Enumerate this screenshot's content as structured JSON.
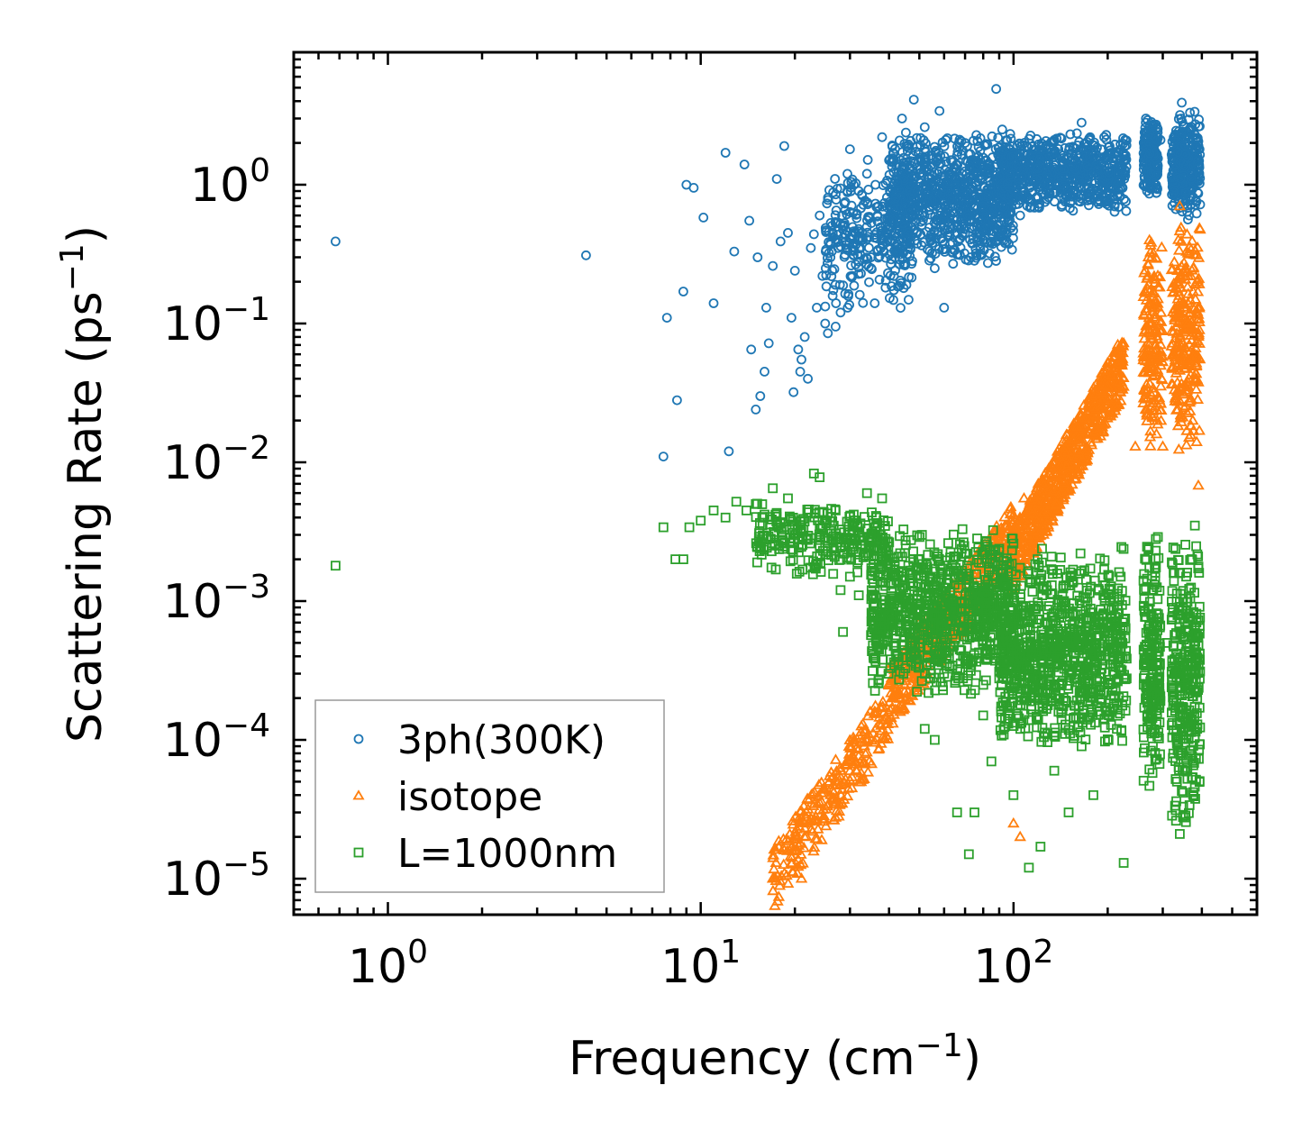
{
  "chart_data": {
    "type": "scatter",
    "xscale": "log",
    "yscale": "log",
    "xlim": [
      0.5,
      600
    ],
    "ylim": [
      5.5e-06,
      9
    ],
    "xlabel": "Frequency (cm",
    "xlabel_sup": "−1",
    "xlabel_end": ")",
    "ylabel": "Scattering Rate (ps",
    "ylabel_sup": "−1",
    "ylabel_end": ")",
    "x_ticks": [
      {
        "value": 1,
        "base": "10",
        "exp": "0"
      },
      {
        "value": 10,
        "base": "10",
        "exp": "1"
      },
      {
        "value": 100,
        "base": "10",
        "exp": "2"
      }
    ],
    "y_ticks": [
      {
        "value": 1,
        "base": "10",
        "exp": "0"
      },
      {
        "value": 0.1,
        "base": "10",
        "exp": "−1"
      },
      {
        "value": 0.01,
        "base": "10",
        "exp": "−2"
      },
      {
        "value": 0.001,
        "base": "10",
        "exp": "−3"
      },
      {
        "value": 0.0001,
        "base": "10",
        "exp": "−4"
      },
      {
        "value": 1e-05,
        "base": "10",
        "exp": "−5"
      }
    ],
    "legend_position": "lower-left",
    "series": [
      {
        "name": "3ph(300K)",
        "marker": "circle",
        "color": "#1f77b4",
        "points": [
          [
            0.68,
            0.39
          ],
          [
            4.3,
            0.31
          ],
          [
            7.6,
            0.011
          ],
          [
            7.8,
            0.11
          ],
          [
            8.4,
            0.028
          ],
          [
            8.8,
            0.17
          ],
          [
            9.0,
            1.0
          ],
          [
            9.5,
            0.95
          ],
          [
            10.2,
            0.58
          ],
          [
            11.0,
            0.14
          ],
          [
            12.0,
            1.7
          ],
          [
            12.3,
            0.012
          ],
          [
            12.8,
            0.33
          ],
          [
            13.8,
            1.4
          ],
          [
            14.3,
            0.55
          ],
          [
            14.5,
            0.065
          ],
          [
            15.0,
            0.024
          ],
          [
            15.2,
            0.3
          ],
          [
            15.5,
            0.03
          ],
          [
            16.0,
            0.045
          ],
          [
            16.2,
            0.13
          ],
          [
            16.5,
            0.072
          ],
          [
            17.0,
            0.26
          ],
          [
            17.5,
            1.1
          ],
          [
            18.0,
            0.39
          ],
          [
            18.5,
            1.9
          ],
          [
            19.0,
            0.45
          ],
          [
            19.5,
            0.11
          ],
          [
            19.8,
            0.032
          ],
          [
            20.0,
            0.24
          ],
          [
            20.5,
            0.065
          ],
          [
            20.8,
            0.045
          ],
          [
            21.0,
            0.055
          ],
          [
            21.5,
            0.08
          ],
          [
            22.0,
            0.04
          ],
          [
            22.5,
            0.35
          ],
          [
            23.0,
            0.44
          ],
          [
            23.5,
            0.13
          ],
          [
            24.0,
            0.6
          ],
          [
            24.5,
            0.22
          ],
          [
            25.0,
            0.1
          ],
          [
            25.5,
            0.085
          ],
          [
            26.0,
            0.3
          ],
          [
            26.5,
            0.88
          ],
          [
            27.0,
            0.095
          ],
          [
            27.5,
            0.35
          ],
          [
            28.0,
            0.12
          ],
          [
            28.5,
            0.5
          ],
          [
            29.0,
            0.75
          ],
          [
            29.5,
            0.13
          ],
          [
            30.0,
            1.8
          ],
          [
            30.5,
            0.22
          ],
          [
            31.0,
            0.45
          ],
          [
            32.0,
            0.9
          ],
          [
            33.0,
            0.4
          ],
          [
            34.0,
            1.2
          ],
          [
            35.0,
            0.3
          ],
          [
            36.0,
            0.14
          ],
          [
            37.0,
            0.7
          ],
          [
            38.0,
            2.2
          ],
          [
            39.0,
            0.5
          ],
          [
            40.0,
            1.5
          ],
          [
            42.0,
            0.8
          ],
          [
            44.0,
            3.0
          ],
          [
            46.0,
            0.35
          ],
          [
            48.0,
            4.1
          ],
          [
            50.0,
            0.6
          ],
          [
            52.0,
            2.6
          ],
          [
            54.0,
            1.0
          ],
          [
            56.0,
            0.25
          ],
          [
            58.0,
            3.4
          ],
          [
            60.0,
            0.13
          ],
          [
            63.0,
            1.5
          ],
          [
            66.0,
            0.45
          ],
          [
            70.0,
            2.0
          ],
          [
            73.0,
            0.3
          ],
          [
            76.0,
            1.2
          ],
          [
            80.0,
            0.7
          ],
          [
            85.0,
            0.5
          ],
          [
            88.0,
            4.9
          ],
          [
            92.0,
            2.5
          ],
          [
            96.0,
            0.85
          ],
          [
            100.0,
            1.6
          ],
          [
            105.0,
            0.6
          ],
          [
            110.0,
            1.9
          ],
          [
            118.0,
            1.1
          ],
          [
            126.0,
            0.75
          ],
          [
            135.0,
            2.1
          ],
          [
            145.0,
            1.3
          ],
          [
            155.0,
            0.65
          ],
          [
            165.0,
            2.8
          ],
          [
            175.0,
            1.6
          ],
          [
            185.0,
            0.9
          ],
          [
            195.0,
            2.2
          ],
          [
            205.0,
            1.7
          ],
          [
            215.0,
            1.0
          ],
          [
            225.0,
            1.5
          ],
          [
            265.0,
            3.0
          ],
          [
            275.0,
            1.2
          ],
          [
            285.0,
            0.95
          ],
          [
            295.0,
            2.1
          ],
          [
            330.0,
            1.4
          ],
          [
            345.0,
            3.9
          ],
          [
            355.0,
            0.8
          ],
          [
            370.0,
            1.1
          ],
          [
            385.0,
            0.62
          ],
          [
            395.0,
            0.72
          ]
        ],
        "clusters": [
          {
            "x": [
              25,
              48
            ],
            "y": [
              0.12,
              1.6
            ],
            "n": 300
          },
          {
            "x": [
              40,
              100
            ],
            "y": [
              0.25,
              2.5
            ],
            "n": 900
          },
          {
            "x": [
              90,
              230
            ],
            "y": [
              0.6,
              2.5
            ],
            "n": 700
          },
          {
            "x": [
              260,
              290
            ],
            "y": [
              0.8,
              3.0
            ],
            "n": 180
          },
          {
            "x": [
              320,
              395
            ],
            "y": [
              0.55,
              3.5
            ],
            "n": 300
          }
        ]
      },
      {
        "name": "isotope",
        "marker": "triangle",
        "color": "#ff7f0e",
        "points": [
          [
            17.0,
            1e-05
          ],
          [
            18.5,
            1.6e-05
          ],
          [
            19.5,
            1.3e-05
          ],
          [
            21.0,
            1e-05
          ],
          [
            22.0,
            2.5e-05
          ],
          [
            24.0,
            3.5e-05
          ],
          [
            26.0,
            4e-05
          ],
          [
            28.0,
            6e-05
          ],
          [
            30.0,
            9e-05
          ],
          [
            33.0,
            0.00013
          ],
          [
            36.0,
            0.00016
          ],
          [
            40.0,
            0.00025
          ],
          [
            45.0,
            0.0004
          ],
          [
            50.0,
            0.0007
          ],
          [
            57.0,
            0.0009
          ],
          [
            65.0,
            0.0013
          ],
          [
            75.0,
            0.0019
          ],
          [
            85.0,
            0.0027
          ],
          [
            95.0,
            0.0035
          ],
          [
            108.0,
            0.0055
          ],
          [
            120.0,
            0.007
          ],
          [
            140.0,
            0.011
          ],
          [
            160.0,
            0.018
          ],
          [
            180.0,
            0.025
          ],
          [
            200.0,
            0.035
          ],
          [
            215.0,
            0.05
          ],
          [
            245.0,
            0.013
          ],
          [
            270.0,
            0.3
          ],
          [
            280.0,
            0.06
          ],
          [
            300.0,
            0.013
          ],
          [
            340.0,
            0.7
          ],
          [
            355.0,
            0.25
          ],
          [
            370.0,
            0.05
          ],
          [
            385.0,
            0.014
          ],
          [
            390.0,
            0.0068
          ],
          [
            100.0,
            2.5e-05
          ],
          [
            105.0,
            2e-05
          ]
        ],
        "clusters": [
          {
            "x": [
              17,
              40
            ],
            "y": [
              1e-05,
              0.00015
            ],
            "n": 260,
            "trend": "rising"
          },
          {
            "x": [
              40,
              100
            ],
            "y": [
              0.0002,
              0.003
            ],
            "n": 420,
            "trend": "rising"
          },
          {
            "x": [
              100,
              225
            ],
            "y": [
              0.002,
              0.05
            ],
            "n": 700,
            "trend": "rising"
          },
          {
            "x": [
              260,
              300
            ],
            "y": [
              0.01,
              0.5
            ],
            "n": 180
          },
          {
            "x": [
              320,
              395
            ],
            "y": [
              0.01,
              0.7
            ],
            "n": 260
          }
        ]
      },
      {
        "name": "L=1000nm",
        "marker": "square",
        "color": "#2ca02c",
        "points": [
          [
            0.68,
            0.0018
          ],
          [
            7.6,
            0.0034
          ],
          [
            8.3,
            0.002
          ],
          [
            8.8,
            0.002
          ],
          [
            9.2,
            0.0034
          ],
          [
            10.0,
            0.0038
          ],
          [
            11.0,
            0.0045
          ],
          [
            12.0,
            0.004
          ],
          [
            13.0,
            0.0052
          ],
          [
            14.0,
            0.0045
          ],
          [
            15.0,
            0.005
          ],
          [
            15.5,
            0.0024
          ],
          [
            16.0,
            0.0042
          ],
          [
            17.0,
            0.0065
          ],
          [
            18.0,
            0.0037
          ],
          [
            19.0,
            0.0055
          ],
          [
            20.0,
            0.003
          ],
          [
            21.0,
            0.0038
          ],
          [
            22.0,
            0.0028
          ],
          [
            23.0,
            0.0083
          ],
          [
            24.0,
            0.0078
          ],
          [
            25.0,
            0.0025
          ],
          [
            26.0,
            0.0032
          ],
          [
            27.0,
            0.0045
          ],
          [
            28.0,
            0.0012
          ],
          [
            28.5,
            0.0006
          ],
          [
            30.0,
            0.0015
          ],
          [
            32.0,
            0.0011
          ],
          [
            34.0,
            0.006
          ],
          [
            38.0,
            0.0055
          ],
          [
            42.0,
            0.0008
          ],
          [
            47.0,
            0.0006
          ],
          [
            52.0,
            0.00012
          ],
          [
            56.0,
            0.0001
          ],
          [
            60.0,
            0.0003
          ],
          [
            66.0,
            3e-05
          ],
          [
            72.0,
            1.5e-05
          ],
          [
            75.0,
            3e-05
          ],
          [
            80.0,
            0.00015
          ],
          [
            85.0,
            7e-05
          ],
          [
            93.0,
            0.00012
          ],
          [
            100.0,
            4e-05
          ],
          [
            112.0,
            1.2e-05
          ],
          [
            122.0,
            1.7e-05
          ],
          [
            135.0,
            6e-05
          ],
          [
            150.0,
            3e-05
          ],
          [
            165.0,
            9e-05
          ],
          [
            180.0,
            4e-05
          ],
          [
            200.0,
            0.0001
          ],
          [
            225.0,
            1.3e-05
          ],
          [
            265.0,
            0.0002
          ],
          [
            285.0,
            0.0028
          ],
          [
            310.0,
            0.0005
          ],
          [
            340.0,
            2.1e-05
          ],
          [
            380.0,
            0.0035
          ]
        ],
        "clusters": [
          {
            "x": [
              15,
              40
            ],
            "y": [
              0.0015,
              0.0055
            ],
            "n": 260
          },
          {
            "x": [
              35,
              100
            ],
            "y": [
              0.0002,
              0.0035
            ],
            "n": 900
          },
          {
            "x": [
              90,
              230
            ],
            "y": [
              8e-05,
              0.0025
            ],
            "n": 900
          },
          {
            "x": [
              260,
              295
            ],
            "y": [
              4e-05,
              0.003
            ],
            "n": 220
          },
          {
            "x": [
              320,
              395
            ],
            "y": [
              2e-05,
              0.0035
            ],
            "n": 320
          }
        ]
      }
    ]
  }
}
